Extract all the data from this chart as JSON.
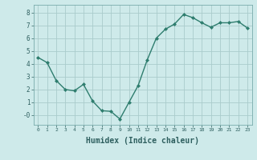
{
  "x": [
    0,
    1,
    2,
    3,
    4,
    5,
    6,
    7,
    8,
    9,
    10,
    11,
    12,
    13,
    14,
    15,
    16,
    17,
    18,
    19,
    20,
    21,
    22,
    23
  ],
  "y": [
    4.5,
    4.1,
    2.7,
    2.0,
    1.9,
    2.4,
    1.1,
    0.35,
    0.3,
    -0.3,
    1.0,
    2.3,
    4.3,
    6.0,
    6.7,
    7.1,
    7.85,
    7.6,
    7.2,
    6.85,
    7.2,
    7.2,
    7.3,
    6.8
  ],
  "line_color": "#2e7d6e",
  "marker": "D",
  "markersize": 2.0,
  "linewidth": 1.0,
  "bg_color": "#ceeaea",
  "grid_color": "#aacccc",
  "xlabel": "Humidex (Indice chaleur)",
  "xlabel_fontsize": 7,
  "ylabel_ticks": [
    0,
    1,
    2,
    3,
    4,
    5,
    6,
    7,
    8
  ],
  "xlim": [
    -0.5,
    23.5
  ],
  "ylim": [
    -0.75,
    8.6
  ],
  "xtick_labels": [
    "0",
    "1",
    "2",
    "3",
    "4",
    "5",
    "6",
    "7",
    "8",
    "9",
    "10",
    "11",
    "12",
    "13",
    "14",
    "15",
    "16",
    "17",
    "18",
    "19",
    "20",
    "21",
    "22",
    "23"
  ],
  "ytick_labels": [
    "-0",
    "1",
    "2",
    "3",
    "4",
    "5",
    "6",
    "7",
    "8"
  ]
}
